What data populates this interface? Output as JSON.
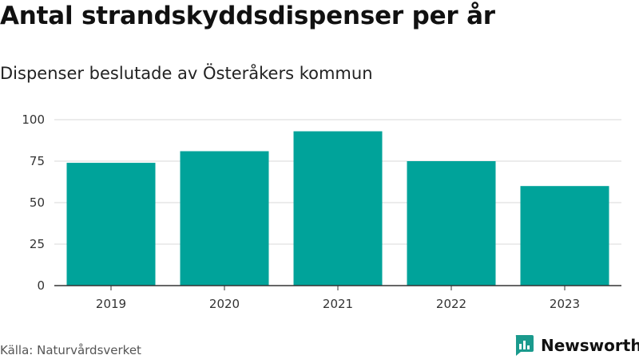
{
  "colors": {
    "bar": "#00a39a",
    "grid": "#d9d9d9",
    "axis": "#333333",
    "brand": "#1a9a8d"
  },
  "footer": {
    "source": "Källa: Naturvårdsverket",
    "brand_name": "Newsworthy",
    "brand_icon": "bar-chart-speech-bubble-icon"
  },
  "chart_data": {
    "type": "bar",
    "title": "Antal strandskyddsdispenser per år",
    "subtitle": "Dispenser beslutade av Österåkers kommun",
    "xlabel": "",
    "ylabel": "",
    "categories": [
      "2019",
      "2020",
      "2021",
      "2022",
      "2023"
    ],
    "values": [
      74,
      81,
      93,
      75,
      60
    ],
    "ylim": [
      0,
      100
    ],
    "yticks": [
      0,
      25,
      50,
      75,
      100
    ],
    "grid": true,
    "legend": "none"
  }
}
